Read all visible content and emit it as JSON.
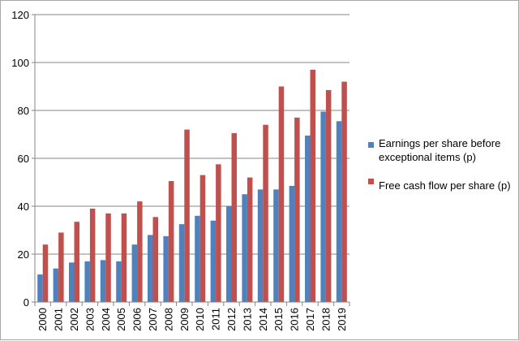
{
  "chart_data": {
    "type": "bar",
    "categories": [
      "2000",
      "2001",
      "2002",
      "2003",
      "2004",
      "2005",
      "2006",
      "2007",
      "2008",
      "2009",
      "2010",
      "2011",
      "2012",
      "2013",
      "2014",
      "2015",
      "2016",
      "2017",
      "2018",
      "2019"
    ],
    "series": [
      {
        "name_lines": [
          "Earnings per share before",
          "exceptional items (p)"
        ],
        "color": "#4f81bd",
        "values": [
          11.5,
          14,
          16.5,
          17,
          17.5,
          17,
          24,
          28,
          27.5,
          32.5,
          36,
          34,
          40,
          45,
          47,
          47,
          48.5,
          69.5,
          79.5,
          75.5
        ]
      },
      {
        "name_lines": [
          "Free cash flow per share (p)"
        ],
        "color": "#c0504d",
        "values": [
          24,
          29,
          33.5,
          39,
          37,
          37,
          42,
          35.5,
          50.5,
          72,
          53,
          57.5,
          70.5,
          52,
          74,
          90,
          77,
          97,
          88.5,
          92
        ]
      }
    ],
    "ylim": [
      0,
      120
    ],
    "yticks": [
      "0",
      "20",
      "40",
      "60",
      "80",
      "100",
      "120"
    ],
    "grid": true,
    "legend": "right"
  }
}
